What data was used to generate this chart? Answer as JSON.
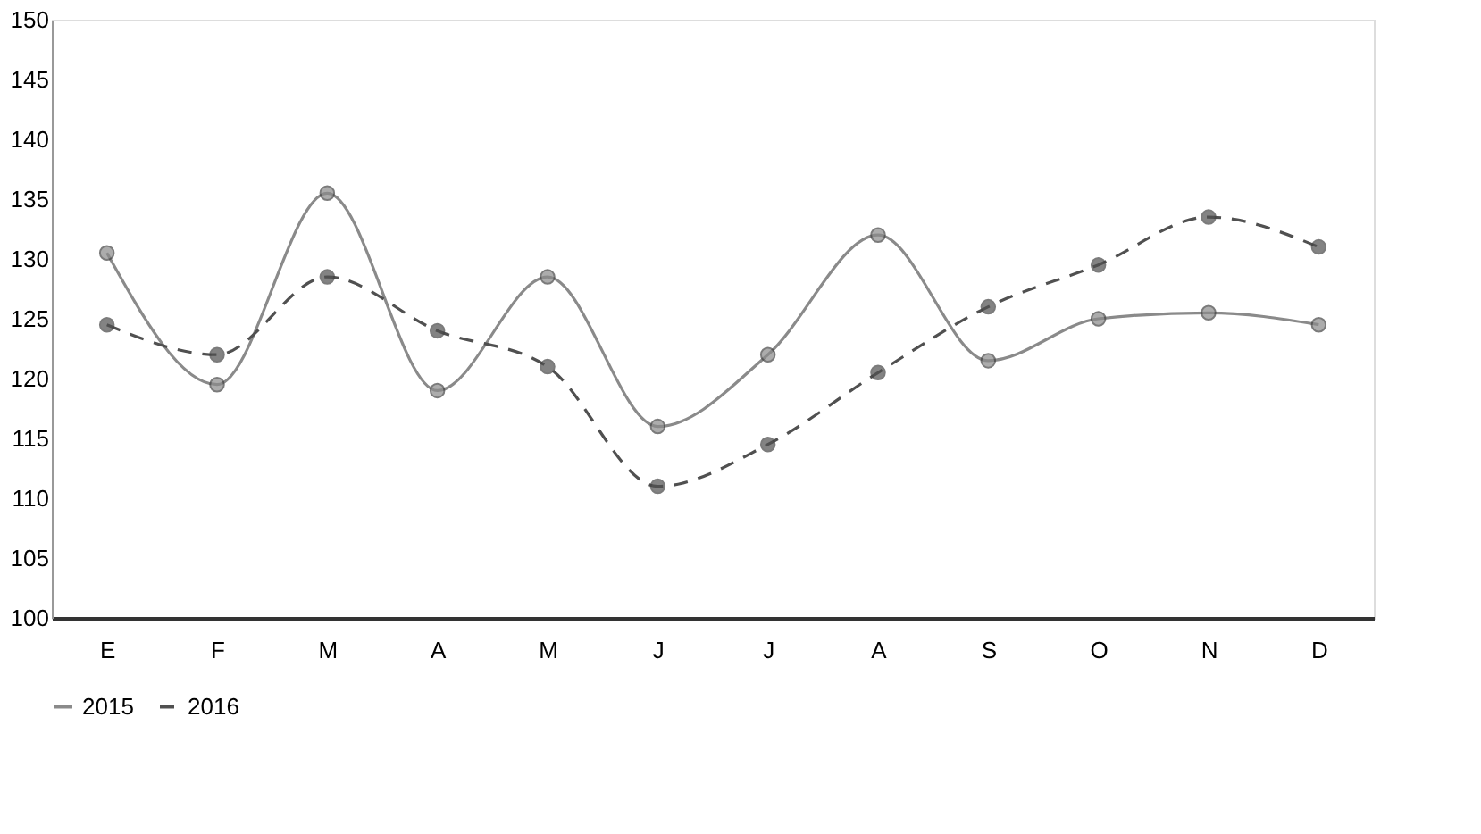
{
  "chart_data": {
    "type": "line",
    "categories": [
      "E",
      "F",
      "M",
      "A",
      "M",
      "J",
      "J",
      "A",
      "S",
      "O",
      "N",
      "D"
    ],
    "series": [
      {
        "name": "2015",
        "color": "#8a8a8a",
        "line_style": "solid",
        "values": [
          130.5,
          119.5,
          135.5,
          119,
          128.5,
          116,
          122,
          132,
          121.5,
          125,
          125.5,
          124.5
        ]
      },
      {
        "name": "2016",
        "color": "#505050",
        "line_style": "dashed",
        "values": [
          124.5,
          122,
          128.5,
          124,
          121,
          111,
          114.5,
          120.5,
          126,
          129.5,
          133.5,
          131
        ]
      }
    ],
    "ylim": [
      100,
      150
    ],
    "yticks": [
      100,
      105,
      110,
      115,
      120,
      125,
      130,
      135,
      140,
      145,
      150
    ],
    "grid": false,
    "legend": "bottom",
    "marker": "circle"
  }
}
